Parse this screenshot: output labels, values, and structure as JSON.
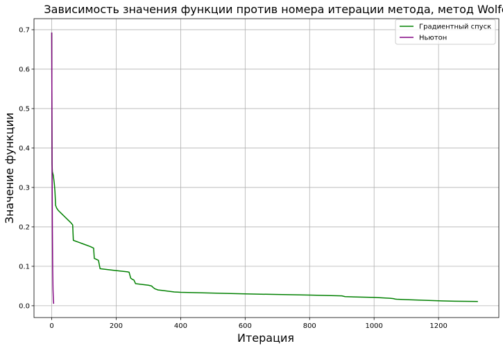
{
  "chart_data": {
    "type": "line",
    "title": "Зависимость значения функции против номера итерации метода, метод Wolfe",
    "xlabel": "Итерация",
    "ylabel": "Значение функции",
    "xlim": [
      -55,
      1387
    ],
    "ylim": [
      -0.03,
      0.728
    ],
    "xticks": [
      0,
      200,
      400,
      600,
      800,
      1000,
      1200
    ],
    "yticks": [
      0.0,
      0.1,
      0.2,
      0.3,
      0.4,
      0.5,
      0.6,
      0.7
    ],
    "ytick_labels": [
      "0.0",
      "0.1",
      "0.2",
      "0.3",
      "0.4",
      "0.5",
      "0.6",
      "0.7"
    ],
    "grid": true,
    "legend_position": "top-right",
    "series": [
      {
        "name": "Градиентный спуск",
        "color": "#008000",
        "x": [
          0,
          1,
          2,
          5,
          8,
          10,
          12,
          15,
          20,
          30,
          40,
          50,
          60,
          65,
          67,
          70,
          80,
          100,
          120,
          130,
          132,
          135,
          140,
          145,
          150,
          200,
          235,
          240,
          245,
          250,
          255,
          260,
          300,
          310,
          315,
          320,
          330,
          340,
          380,
          400,
          600,
          800,
          900,
          910,
          1000,
          1050,
          1060,
          1065,
          1070,
          1100,
          1200,
          1250,
          1300,
          1322
        ],
        "y": [
          0.693,
          0.36,
          0.34,
          0.33,
          0.31,
          0.29,
          0.255,
          0.248,
          0.242,
          0.234,
          0.226,
          0.218,
          0.21,
          0.205,
          0.166,
          0.165,
          0.162,
          0.156,
          0.15,
          0.146,
          0.12,
          0.119,
          0.117,
          0.115,
          0.094,
          0.089,
          0.086,
          0.085,
          0.07,
          0.067,
          0.065,
          0.056,
          0.052,
          0.05,
          0.046,
          0.043,
          0.04,
          0.039,
          0.035,
          0.034,
          0.03,
          0.027,
          0.025,
          0.023,
          0.021,
          0.019,
          0.018,
          0.017,
          0.0165,
          0.0155,
          0.0125,
          0.0115,
          0.011,
          0.0108
        ]
      },
      {
        "name": "Ньютон",
        "color": "#800080",
        "x": [
          0,
          1,
          2,
          3,
          4,
          5,
          6
        ],
        "y": [
          0.693,
          0.38,
          0.2,
          0.09,
          0.04,
          0.015,
          0.005
        ]
      }
    ]
  }
}
